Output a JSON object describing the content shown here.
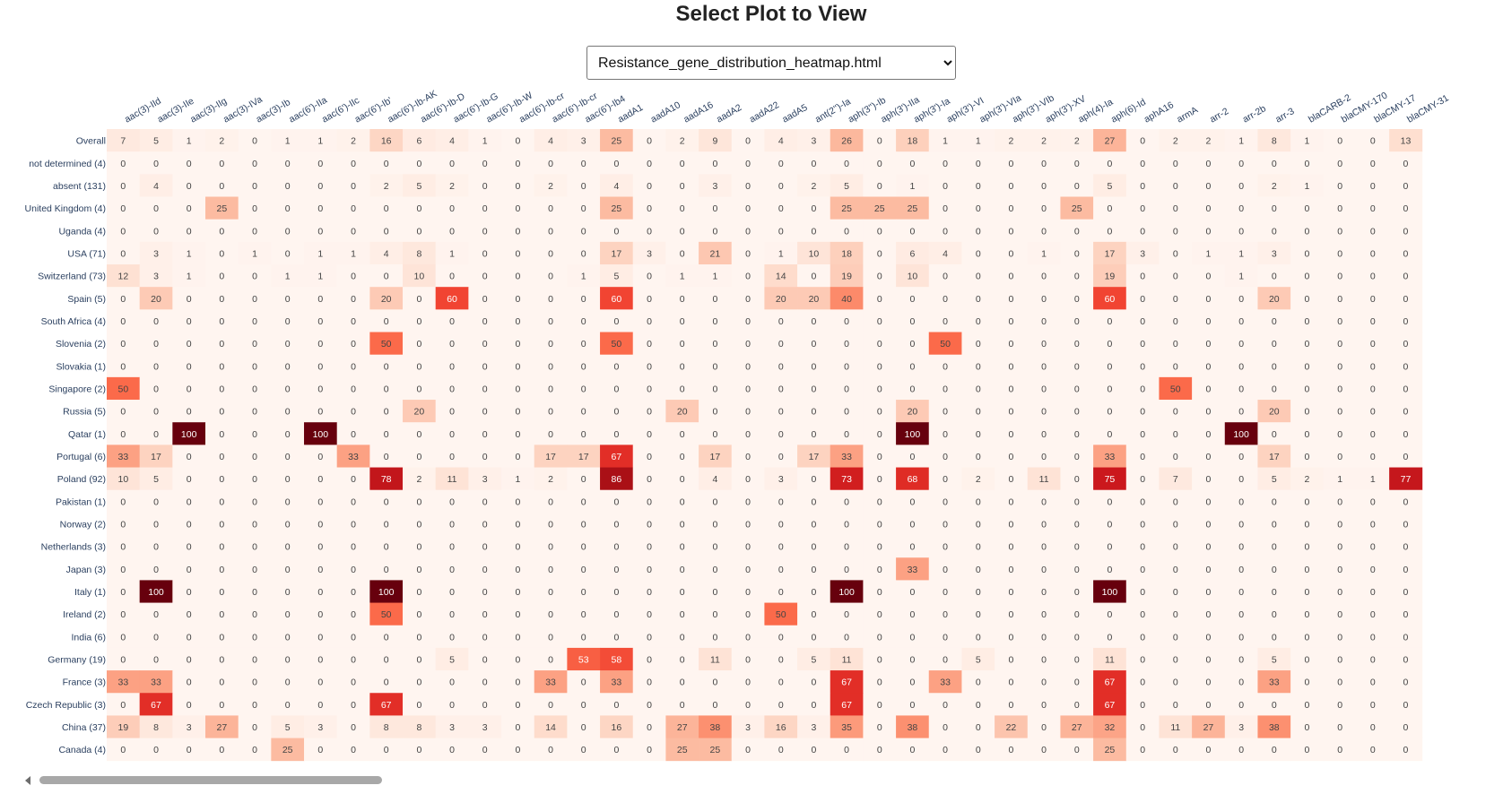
{
  "page": {
    "title": "Select Plot to View",
    "selector": {
      "selected": "Resistance_gene_distribution_heatmap.html",
      "options": [
        "Resistance_gene_distribution_heatmap.html"
      ]
    }
  },
  "colors": {
    "scale": [
      "#fff5f0",
      "#fee0d2",
      "#fcbba1",
      "#fc9272",
      "#fb6a4a",
      "#ef3b2c",
      "#cb181d",
      "#a50f15",
      "#67000d"
    ],
    "label_text": "#2a3f5f"
  },
  "chart_data": {
    "type": "heatmap",
    "columns": [
      "aac(3)-IId",
      "aac(3)-IIe",
      "aac(3)-IIg",
      "aac(3)-IVa",
      "aac(3)-Ib",
      "aac(6')-IIa",
      "aac(6')-IIc",
      "aac(6')-Ib'",
      "aac(6')-Ib-AK",
      "aac(6')-Ib-D",
      "aac(6')-Ib-G",
      "aac(6')-Ib-W",
      "aac(6')-Ib-cr",
      "aac(6')-Ib-cr",
      "aac(6')-Ib4",
      "aadA1",
      "aadA10",
      "aadA16",
      "aadA2",
      "aadA22",
      "aadA5",
      "ant(2'')-Ia",
      "aph(3'')-Ib",
      "aph(3')-IIa",
      "aph(3')-Ia",
      "aph(3')-VI",
      "aph(3')-VIa",
      "aph(3')-VIb",
      "aph(3')-XV",
      "aph(4)-Ia",
      "aph(6)-Id",
      "aphA16",
      "armA",
      "arr-2",
      "arr-2b",
      "arr-3",
      "blaCARB-2",
      "blaCMY-170",
      "blaCMY-17",
      "blaCMY-31"
    ],
    "rows": [
      "Overall",
      "not determined (4)",
      "absent (131)",
      "United Kingdom (4)",
      "Uganda (4)",
      "USA (71)",
      "Switzerland (73)",
      "Spain (5)",
      "South Africa (4)",
      "Slovenia (2)",
      "Slovakia (1)",
      "Singapore (2)",
      "Russia (5)",
      "Qatar (1)",
      "Portugal (6)",
      "Poland (92)",
      "Pakistan (1)",
      "Norway (2)",
      "Netherlands (3)",
      "Japan (3)",
      "Italy (1)",
      "Ireland (2)",
      "India (6)",
      "Germany (19)",
      "France (3)",
      "Czech Republic (3)",
      "China (37)",
      "Canada (4)"
    ],
    "values": [
      [
        7,
        5,
        1,
        2,
        0,
        1,
        1,
        2,
        16,
        6,
        4,
        1,
        0,
        4,
        3,
        25,
        0,
        2,
        9,
        0,
        4,
        3,
        26,
        0,
        18,
        1,
        1,
        2,
        2,
        2,
        27,
        0,
        2,
        2,
        1,
        8,
        1,
        0,
        0,
        13
      ],
      [
        0,
        0,
        0,
        0,
        0,
        0,
        0,
        0,
        0,
        0,
        0,
        0,
        0,
        0,
        0,
        0,
        0,
        0,
        0,
        0,
        0,
        0,
        0,
        0,
        0,
        0,
        0,
        0,
        0,
        0,
        0,
        0,
        0,
        0,
        0,
        0,
        0,
        0,
        0,
        0
      ],
      [
        0,
        4,
        0,
        0,
        0,
        0,
        0,
        0,
        2,
        5,
        2,
        0,
        0,
        2,
        0,
        4,
        0,
        0,
        3,
        0,
        0,
        2,
        5,
        0,
        1,
        0,
        0,
        0,
        0,
        0,
        5,
        0,
        0,
        0,
        0,
        2,
        1,
        0,
        0,
        0
      ],
      [
        0,
        0,
        0,
        25,
        0,
        0,
        0,
        0,
        0,
        0,
        0,
        0,
        0,
        0,
        0,
        25,
        0,
        0,
        0,
        0,
        0,
        0,
        25,
        25,
        25,
        0,
        0,
        0,
        0,
        25,
        0,
        0,
        0,
        0,
        0,
        0,
        0,
        0,
        0,
        0
      ],
      [
        0,
        0,
        0,
        0,
        0,
        0,
        0,
        0,
        0,
        0,
        0,
        0,
        0,
        0,
        0,
        0,
        0,
        0,
        0,
        0,
        0,
        0,
        0,
        0,
        0,
        0,
        0,
        0,
        0,
        0,
        0,
        0,
        0,
        0,
        0,
        0,
        0,
        0,
        0,
        0
      ],
      [
        0,
        3,
        1,
        0,
        1,
        0,
        1,
        1,
        4,
        8,
        1,
        0,
        0,
        0,
        0,
        17,
        3,
        0,
        21,
        0,
        1,
        10,
        18,
        0,
        6,
        4,
        0,
        0,
        1,
        0,
        17,
        3,
        0,
        1,
        1,
        3,
        0,
        0,
        0,
        0
      ],
      [
        12,
        3,
        1,
        0,
        0,
        1,
        1,
        0,
        0,
        10,
        0,
        0,
        0,
        0,
        1,
        5,
        0,
        1,
        1,
        0,
        14,
        0,
        19,
        0,
        10,
        0,
        0,
        0,
        0,
        0,
        19,
        0,
        0,
        0,
        1,
        0,
        0,
        0,
        0,
        0
      ],
      [
        0,
        20,
        0,
        0,
        0,
        0,
        0,
        0,
        20,
        0,
        60,
        0,
        0,
        0,
        0,
        60,
        0,
        0,
        0,
        0,
        20,
        20,
        40,
        0,
        0,
        0,
        0,
        0,
        0,
        0,
        60,
        0,
        0,
        0,
        0,
        20,
        0,
        0,
        0,
        0
      ],
      [
        0,
        0,
        0,
        0,
        0,
        0,
        0,
        0,
        0,
        0,
        0,
        0,
        0,
        0,
        0,
        0,
        0,
        0,
        0,
        0,
        0,
        0,
        0,
        0,
        0,
        0,
        0,
        0,
        0,
        0,
        0,
        0,
        0,
        0,
        0,
        0,
        0,
        0,
        0,
        0
      ],
      [
        0,
        0,
        0,
        0,
        0,
        0,
        0,
        0,
        50,
        0,
        0,
        0,
        0,
        0,
        0,
        50,
        0,
        0,
        0,
        0,
        0,
        0,
        0,
        0,
        0,
        50,
        0,
        0,
        0,
        0,
        0,
        0,
        0,
        0,
        0,
        0,
        0,
        0,
        0,
        0
      ],
      [
        0,
        0,
        0,
        0,
        0,
        0,
        0,
        0,
        0,
        0,
        0,
        0,
        0,
        0,
        0,
        0,
        0,
        0,
        0,
        0,
        0,
        0,
        0,
        0,
        0,
        0,
        0,
        0,
        0,
        0,
        0,
        0,
        0,
        0,
        0,
        0,
        0,
        0,
        0,
        0
      ],
      [
        50,
        0,
        0,
        0,
        0,
        0,
        0,
        0,
        0,
        0,
        0,
        0,
        0,
        0,
        0,
        0,
        0,
        0,
        0,
        0,
        0,
        0,
        0,
        0,
        0,
        0,
        0,
        0,
        0,
        0,
        0,
        0,
        50,
        0,
        0,
        0,
        0,
        0,
        0,
        0
      ],
      [
        0,
        0,
        0,
        0,
        0,
        0,
        0,
        0,
        0,
        20,
        0,
        0,
        0,
        0,
        0,
        0,
        0,
        20,
        0,
        0,
        0,
        0,
        0,
        0,
        20,
        0,
        0,
        0,
        0,
        0,
        0,
        0,
        0,
        0,
        0,
        20,
        0,
        0,
        0,
        0
      ],
      [
        0,
        0,
        100,
        0,
        0,
        0,
        100,
        0,
        0,
        0,
        0,
        0,
        0,
        0,
        0,
        0,
        0,
        0,
        0,
        0,
        0,
        0,
        0,
        0,
        100,
        0,
        0,
        0,
        0,
        0,
        0,
        0,
        0,
        0,
        100,
        0,
        0,
        0,
        0,
        0
      ],
      [
        33,
        17,
        0,
        0,
        0,
        0,
        0,
        33,
        0,
        0,
        0,
        0,
        0,
        17,
        17,
        67,
        0,
        0,
        17,
        0,
        0,
        17,
        33,
        0,
        0,
        0,
        0,
        0,
        0,
        0,
        33,
        0,
        0,
        0,
        0,
        17,
        0,
        0,
        0,
        0
      ],
      [
        10,
        5,
        0,
        0,
        0,
        0,
        0,
        0,
        78,
        2,
        11,
        3,
        1,
        2,
        0,
        86,
        0,
        0,
        4,
        0,
        3,
        0,
        73,
        0,
        68,
        0,
        2,
        0,
        11,
        0,
        75,
        0,
        7,
        0,
        0,
        5,
        2,
        1,
        1,
        77
      ],
      [
        0,
        0,
        0,
        0,
        0,
        0,
        0,
        0,
        0,
        0,
        0,
        0,
        0,
        0,
        0,
        0,
        0,
        0,
        0,
        0,
        0,
        0,
        0,
        0,
        0,
        0,
        0,
        0,
        0,
        0,
        0,
        0,
        0,
        0,
        0,
        0,
        0,
        0,
        0,
        0
      ],
      [
        0,
        0,
        0,
        0,
        0,
        0,
        0,
        0,
        0,
        0,
        0,
        0,
        0,
        0,
        0,
        0,
        0,
        0,
        0,
        0,
        0,
        0,
        0,
        0,
        0,
        0,
        0,
        0,
        0,
        0,
        0,
        0,
        0,
        0,
        0,
        0,
        0,
        0,
        0,
        0
      ],
      [
        0,
        0,
        0,
        0,
        0,
        0,
        0,
        0,
        0,
        0,
        0,
        0,
        0,
        0,
        0,
        0,
        0,
        0,
        0,
        0,
        0,
        0,
        0,
        0,
        0,
        0,
        0,
        0,
        0,
        0,
        0,
        0,
        0,
        0,
        0,
        0,
        0,
        0,
        0,
        0
      ],
      [
        0,
        0,
        0,
        0,
        0,
        0,
        0,
        0,
        0,
        0,
        0,
        0,
        0,
        0,
        0,
        0,
        0,
        0,
        0,
        0,
        0,
        0,
        0,
        0,
        33,
        0,
        0,
        0,
        0,
        0,
        0,
        0,
        0,
        0,
        0,
        0,
        0,
        0,
        0,
        0
      ],
      [
        0,
        100,
        0,
        0,
        0,
        0,
        0,
        0,
        100,
        0,
        0,
        0,
        0,
        0,
        0,
        0,
        0,
        0,
        0,
        0,
        0,
        0,
        100,
        0,
        0,
        0,
        0,
        0,
        0,
        0,
        100,
        0,
        0,
        0,
        0,
        0,
        0,
        0,
        0,
        0
      ],
      [
        0,
        0,
        0,
        0,
        0,
        0,
        0,
        0,
        50,
        0,
        0,
        0,
        0,
        0,
        0,
        0,
        0,
        0,
        0,
        0,
        50,
        0,
        0,
        0,
        0,
        0,
        0,
        0,
        0,
        0,
        0,
        0,
        0,
        0,
        0,
        0,
        0,
        0,
        0,
        0
      ],
      [
        0,
        0,
        0,
        0,
        0,
        0,
        0,
        0,
        0,
        0,
        0,
        0,
        0,
        0,
        0,
        0,
        0,
        0,
        0,
        0,
        0,
        0,
        0,
        0,
        0,
        0,
        0,
        0,
        0,
        0,
        0,
        0,
        0,
        0,
        0,
        0,
        0,
        0,
        0,
        0
      ],
      [
        0,
        0,
        0,
        0,
        0,
        0,
        0,
        0,
        0,
        0,
        5,
        0,
        0,
        0,
        53,
        58,
        0,
        0,
        11,
        0,
        0,
        5,
        11,
        0,
        0,
        0,
        5,
        0,
        0,
        0,
        11,
        0,
        0,
        0,
        0,
        5,
        0,
        0,
        0,
        0
      ],
      [
        33,
        33,
        0,
        0,
        0,
        0,
        0,
        0,
        0,
        0,
        0,
        0,
        0,
        33,
        0,
        33,
        0,
        0,
        0,
        0,
        0,
        0,
        67,
        0,
        0,
        33,
        0,
        0,
        0,
        0,
        67,
        0,
        0,
        0,
        0,
        33,
        0,
        0,
        0,
        0
      ],
      [
        0,
        67,
        0,
        0,
        0,
        0,
        0,
        0,
        67,
        0,
        0,
        0,
        0,
        0,
        0,
        0,
        0,
        0,
        0,
        0,
        0,
        0,
        67,
        0,
        0,
        0,
        0,
        0,
        0,
        0,
        67,
        0,
        0,
        0,
        0,
        0,
        0,
        0,
        0,
        0
      ],
      [
        19,
        8,
        3,
        27,
        0,
        5,
        3,
        0,
        8,
        8,
        3,
        3,
        0,
        14,
        0,
        16,
        0,
        27,
        38,
        3,
        16,
        3,
        35,
        0,
        38,
        0,
        0,
        22,
        0,
        27,
        32,
        0,
        11,
        27,
        3,
        38,
        0,
        0,
        0,
        0
      ],
      [
        0,
        0,
        0,
        0,
        0,
        25,
        0,
        0,
        0,
        0,
        0,
        0,
        0,
        0,
        0,
        0,
        0,
        25,
        25,
        0,
        0,
        0,
        0,
        0,
        0,
        0,
        0,
        0,
        0,
        0,
        25,
        0,
        0,
        0,
        0,
        0,
        0,
        0,
        0,
        0
      ]
    ],
    "zmin": 0,
    "zmax": 100,
    "colorscale": "Reds",
    "title": "",
    "xlabel": "",
    "ylabel": ""
  }
}
